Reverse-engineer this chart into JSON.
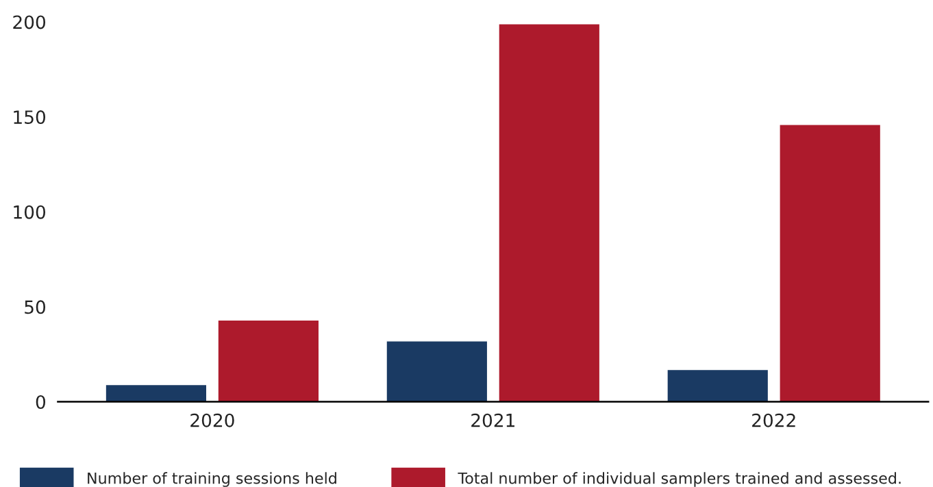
{
  "chart_data": {
    "type": "bar",
    "categories": [
      "2020",
      "2021",
      "2022"
    ],
    "series": [
      {
        "name": "Number of training sessions held",
        "color": "#1a3a63",
        "values": [
          9,
          32,
          17
        ]
      },
      {
        "name": "Total number of individual samplers trained and assessed.",
        "color": "#ad1a2c",
        "values": [
          43,
          199,
          146
        ]
      }
    ],
    "ylim": [
      0,
      200
    ],
    "yticks": [
      0,
      50,
      100,
      150,
      200
    ],
    "grid": false,
    "legend": "bottom"
  }
}
